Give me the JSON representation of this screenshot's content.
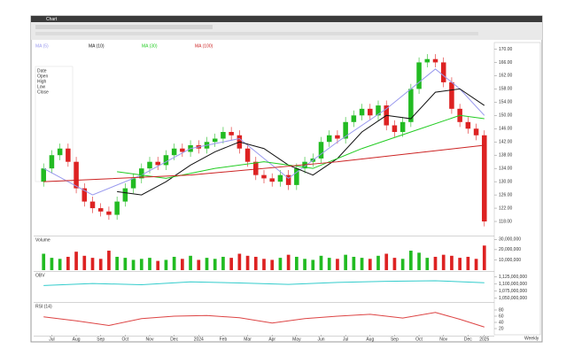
{
  "window": {
    "title": "Chart",
    "interval": "Weekly"
  },
  "chart_data": [
    {
      "type": "candlestick",
      "xlim": [
        -1,
        55
      ],
      "ylim": [
        114,
        172
      ],
      "up_color": "#22bb22",
      "down_color": "#dd2222",
      "open": [
        130,
        134,
        138,
        140,
        136,
        128,
        124,
        122,
        121,
        120,
        124,
        128,
        131,
        134,
        136,
        135,
        138,
        140,
        139,
        141,
        140,
        142,
        143,
        145,
        144,
        140,
        136,
        132,
        131,
        130,
        132,
        129,
        134,
        136,
        137,
        142,
        144,
        143,
        148,
        150,
        152,
        150,
        153,
        147,
        145,
        148,
        158,
        166,
        167,
        166,
        160,
        152,
        148,
        146,
        144
      ],
      "high": [
        135.5,
        139.5,
        141.5,
        141.5,
        137.5,
        129.5,
        125.5,
        123.5,
        122.5,
        125.5,
        129.5,
        132.5,
        135.5,
        137.5,
        137.5,
        139.5,
        141.5,
        141.5,
        142.5,
        142.5,
        143.5,
        144.5,
        146.5,
        146.5,
        145.5,
        141.5,
        137.5,
        133.5,
        132.5,
        133.5,
        133.5,
        135.5,
        137.5,
        138.5,
        143.5,
        145.5,
        145.5,
        149.5,
        151.5,
        153.5,
        153.5,
        154.5,
        154.5,
        148.5,
        149.5,
        159.5,
        167.5,
        168.5,
        168.5,
        167.5,
        161.5,
        153.5,
        149.5,
        147.5,
        145.5
      ],
      "low": [
        128.5,
        132.5,
        136.5,
        134.5,
        126.5,
        122.5,
        120.5,
        119.5,
        118.5,
        118.5,
        122.5,
        126.5,
        129.5,
        132.5,
        133.5,
        133.5,
        136.5,
        137.5,
        137.5,
        138.5,
        138.5,
        140.5,
        141.5,
        142.5,
        138.5,
        134.5,
        130.5,
        129.5,
        128.5,
        128.5,
        127.5,
        127.5,
        132.5,
        134.5,
        135.5,
        140.5,
        141.5,
        141.5,
        146.5,
        148.5,
        148.5,
        148.5,
        145.5,
        143.5,
        143.5,
        146.5,
        156.5,
        164.5,
        164.5,
        158.5,
        150.5,
        146.5,
        144.5,
        142.5,
        116.5
      ],
      "close": [
        134,
        138,
        140,
        136,
        128,
        124,
        122,
        121,
        120,
        124,
        128,
        131,
        134,
        136,
        135,
        138,
        140,
        139,
        141,
        140,
        142,
        143,
        145,
        144,
        140,
        136,
        132,
        131,
        130,
        132,
        129,
        134,
        136,
        137,
        142,
        144,
        143,
        148,
        150,
        152,
        150,
        153,
        147,
        145,
        148,
        158,
        166,
        167,
        166,
        160,
        152,
        148,
        146,
        144,
        118
      ],
      "series": [
        {
          "name": "MA (5)",
          "color": "#9999ee",
          "x": [
            0,
            6,
            12,
            18,
            24,
            30,
            36,
            42,
            48,
            51,
            54
          ],
          "values": [
            134,
            126,
            132,
            140,
            143,
            131,
            142,
            152,
            164,
            158,
            150
          ]
        },
        {
          "name": "MA (10)",
          "color": "#111111",
          "x": [
            9,
            12,
            15,
            18,
            21,
            24,
            27,
            30,
            33,
            36,
            39,
            42,
            45,
            48,
            51,
            54
          ],
          "values": [
            127,
            126,
            130,
            135,
            139,
            142,
            140,
            135,
            132,
            137,
            145,
            150,
            149,
            157,
            158,
            153
          ]
        },
        {
          "name": "MA (30)",
          "color": "#22cc22",
          "x": [
            9,
            15,
            21,
            27,
            33,
            39,
            45,
            51,
            54
          ],
          "values": [
            133,
            131,
            134,
            136,
            134,
            140,
            145,
            150,
            149
          ]
        },
        {
          "name": "MA (100)",
          "color": "#cc2222",
          "x": [
            0,
            18,
            36,
            54
          ],
          "values": [
            130,
            132,
            136,
            141
          ]
        }
      ],
      "yticks": [
        {
          "value": 170,
          "label": "170.00"
        },
        {
          "value": 166,
          "label": "166.00"
        },
        {
          "value": 162,
          "label": "162.00"
        },
        {
          "value": 158,
          "label": "158.00"
        },
        {
          "value": 154,
          "label": "154.00"
        },
        {
          "value": 150,
          "label": "150.00"
        },
        {
          "value": 146,
          "label": "146.00"
        },
        {
          "value": 142,
          "label": "142.00"
        },
        {
          "value": 138,
          "label": "138.00"
        },
        {
          "value": 134,
          "label": "134.00"
        },
        {
          "value": 130,
          "label": "130.00"
        },
        {
          "value": 126,
          "label": "126.00"
        },
        {
          "value": 122,
          "label": "122.00"
        },
        {
          "value": 118,
          "label": "118.00"
        }
      ],
      "info_labels": [
        "Date",
        "Open",
        "High",
        "Low",
        "Close"
      ],
      "xticks": [
        {
          "value": 1,
          "label": "Jul"
        },
        {
          "value": 4,
          "label": "Aug"
        },
        {
          "value": 7,
          "label": "Sep"
        },
        {
          "value": 10,
          "label": "Oct"
        },
        {
          "value": 13,
          "label": "Nov"
        },
        {
          "value": 16,
          "label": "Dec"
        },
        {
          "value": 19,
          "label": "2024"
        },
        {
          "value": 22,
          "label": "Feb"
        },
        {
          "value": 25,
          "label": "Mar"
        },
        {
          "value": 28,
          "label": "Apr"
        },
        {
          "value": 31,
          "label": "May"
        },
        {
          "value": 34,
          "label": "Jun"
        },
        {
          "value": 37,
          "label": "Jul"
        },
        {
          "value": 40,
          "label": "Aug"
        },
        {
          "value": 43,
          "label": "Sep"
        },
        {
          "value": 46,
          "label": "Oct"
        },
        {
          "value": 49,
          "label": "Nov"
        },
        {
          "value": 52,
          "label": "Dec"
        },
        {
          "value": 54,
          "label": "2025"
        }
      ]
    },
    {
      "type": "volume",
      "name": "Volume",
      "xlim": [
        -1,
        55
      ],
      "ylim": [
        0,
        32000000
      ],
      "values": [
        16000000.0,
        12000000.0,
        11000000.0,
        13000000.0,
        18000000.0,
        14000000.0,
        12000000.0,
        11000000.0,
        19000000.0,
        13000000.0,
        12000000.0,
        10000000.0,
        11000000.0,
        12000000.0,
        9000000.0,
        10000000.0,
        13000000.0,
        11000000.0,
        14000000.0,
        10000000.0,
        12000000.0,
        11000000.0,
        13000000.0,
        12000000.0,
        16000000.0,
        14000000.0,
        13000000.0,
        11000000.0,
        10000000.0,
        12000000.0,
        15000000.0,
        13000000.0,
        11000000.0,
        10000000.0,
        14000000.0,
        12000000.0,
        11000000.0,
        15000000.0,
        13000000.0,
        12000000.0,
        11000000.0,
        14000000.0,
        16000000.0,
        12000000.0,
        11000000.0,
        19000000.0,
        17000000.0,
        12000000.0,
        13000000.0,
        15000000.0,
        14000000.0,
        12000000.0,
        13000000.0,
        11000000.0,
        24000000.0
      ],
      "yticks": [
        {
          "value": 30000000,
          "label": "30,000,000"
        },
        {
          "value": 20000000,
          "label": "20,000,000"
        },
        {
          "value": 10000000,
          "label": "10,000,000"
        }
      ]
    },
    {
      "type": "line",
      "name": "OBV",
      "xlim": [
        -1,
        55
      ],
      "ylim": [
        1040000000,
        1140000000
      ],
      "series": [
        {
          "color": "#33cccc",
          "x": [
            0,
            6,
            12,
            18,
            24,
            30,
            36,
            42,
            48,
            54
          ],
          "values": [
            1095000000,
            1102000000,
            1098000000,
            1108000000,
            1104000000,
            1099000000,
            1106000000,
            1110000000,
            1112000000,
            1105000000
          ]
        }
      ],
      "yticks": [
        {
          "value": 1125000000,
          "label": "1,125,000,000"
        },
        {
          "value": 1100000000,
          "label": "1,100,000,000"
        },
        {
          "value": 1075000000,
          "label": "1,075,000,000"
        },
        {
          "value": 1050000000,
          "label": "1,050,000,000"
        }
      ]
    },
    {
      "type": "line",
      "name": "RSI (14)",
      "xlim": [
        -1,
        55
      ],
      "ylim": [
        0,
        100
      ],
      "series": [
        {
          "color": "#dd4444",
          "x": [
            0,
            4,
            8,
            12,
            16,
            20,
            24,
            28,
            32,
            36,
            40,
            44,
            48,
            51,
            54
          ],
          "values": [
            58,
            45,
            30,
            52,
            60,
            62,
            55,
            38,
            52,
            60,
            66,
            54,
            72,
            50,
            25
          ]
        }
      ],
      "yticks": [
        80,
        60,
        40,
        20
      ]
    }
  ]
}
